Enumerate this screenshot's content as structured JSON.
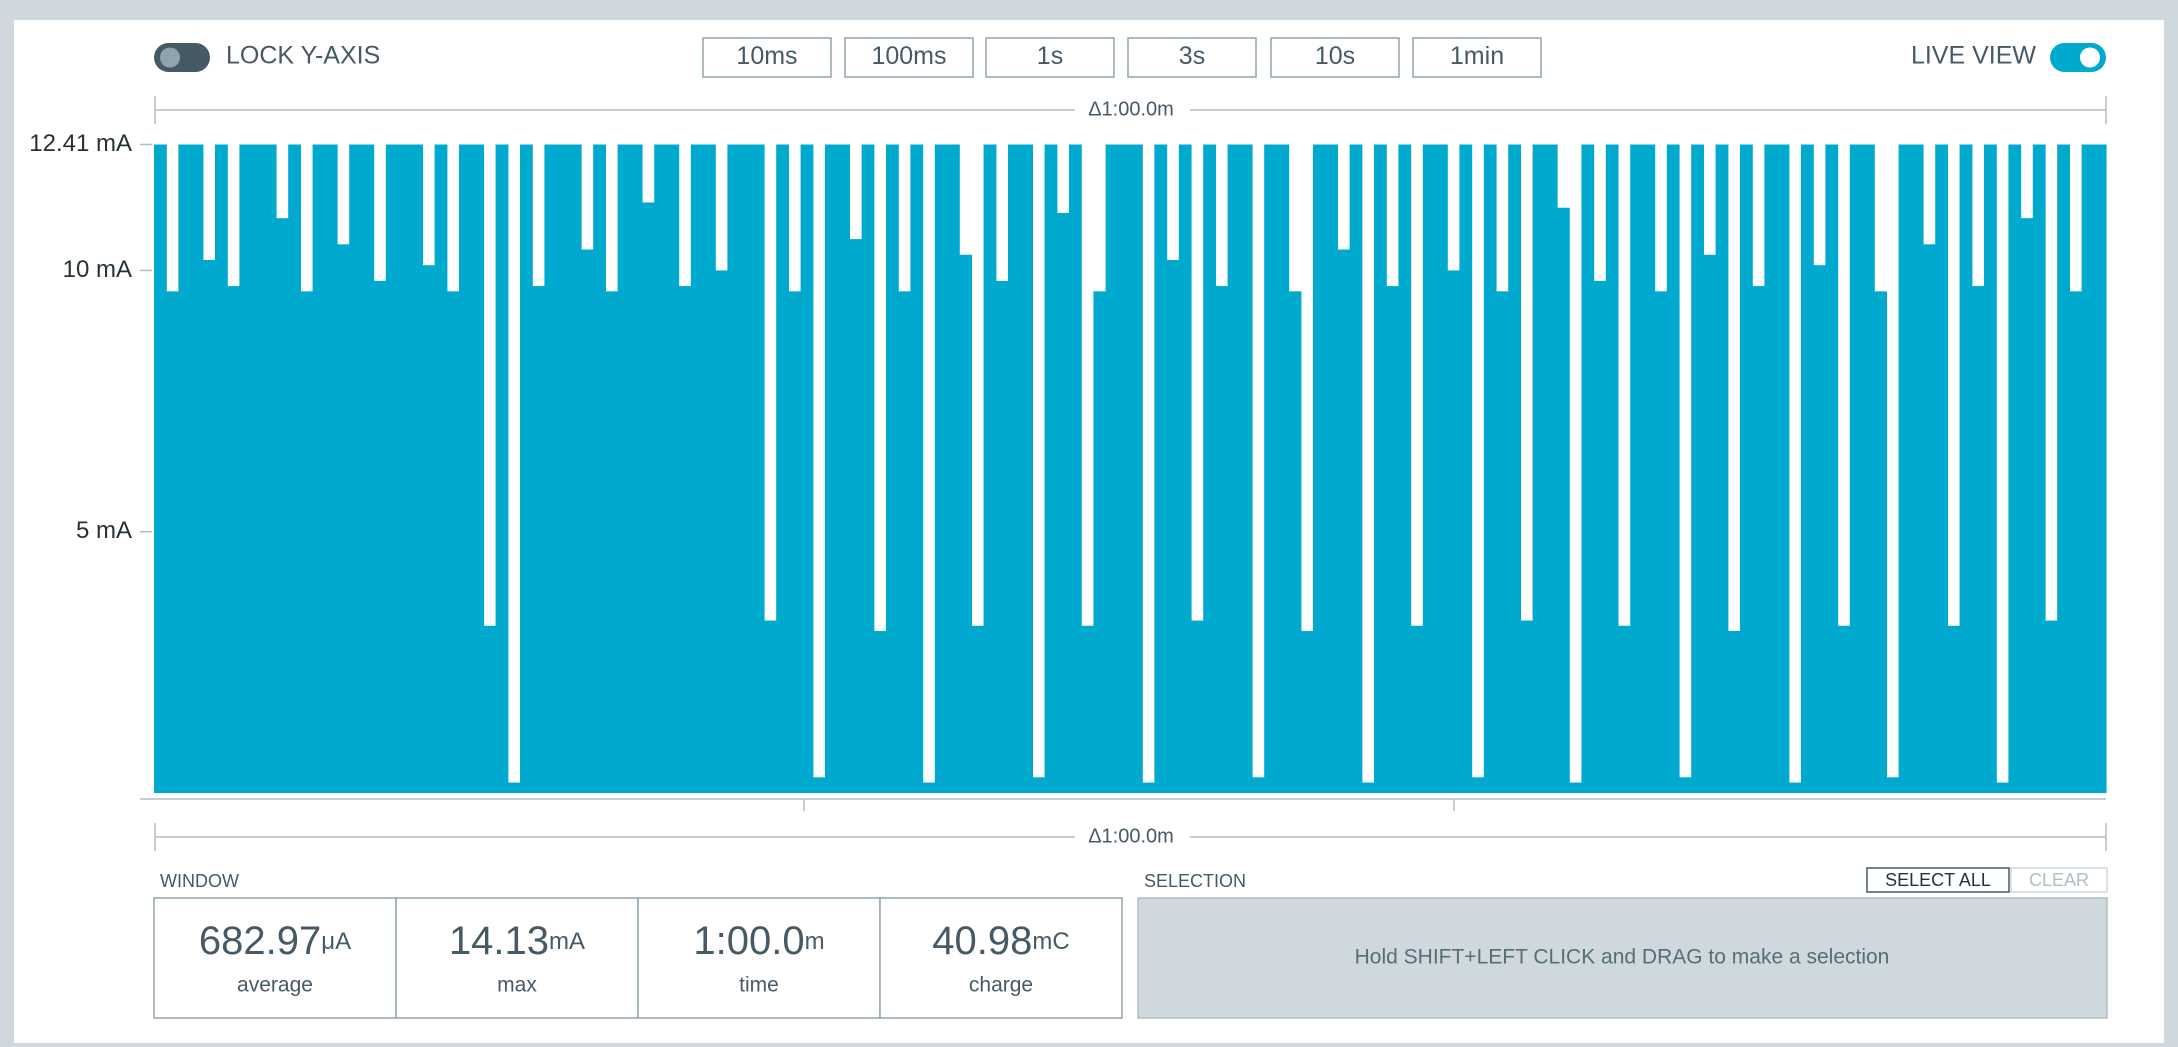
{
  "ui": {
    "lock_label": "LOCK Y-AXIS",
    "live_label": "LIVE VIEW",
    "time_buttons": [
      "10ms",
      "100ms",
      "1s",
      "3s",
      "10s",
      "1min"
    ],
    "top_delta": "Δ1:00.0m",
    "bottom_delta": "Δ1:00.0m",
    "window_label": "WINDOW",
    "stats": [
      {
        "value": "682.97",
        "unit": "μA",
        "label": "average"
      },
      {
        "value": "14.13",
        "unit": "mA",
        "label": "max"
      },
      {
        "value": "1:00.0",
        "unit": "m",
        "label": "time"
      },
      {
        "value": "40.98",
        "unit": "mC",
        "label": "charge"
      }
    ],
    "selection_label": "SELECTION",
    "select_all": "SELECT ALL",
    "clear": "CLEAR",
    "selection_hint": "Hold SHIFT+LEFT CLICK and DRAG to make a selection"
  },
  "chart_data": {
    "type": "bar",
    "color": "#00a9ce",
    "ylim": [
      0,
      12.41
    ],
    "yticks": [
      {
        "value": 5,
        "label": "5 mA"
      },
      {
        "value": 10,
        "label": "10 mA"
      },
      {
        "value": 12.41,
        "label": "12.41 mA"
      }
    ],
    "values": [
      12.41,
      9.6,
      12.41,
      12.41,
      10.2,
      12.41,
      9.7,
      12.41,
      12.41,
      12.41,
      11.0,
      12.41,
      9.6,
      12.41,
      12.41,
      10.5,
      12.41,
      12.41,
      9.8,
      12.41,
      12.41,
      12.41,
      10.1,
      12.41,
      9.6,
      12.41,
      12.41,
      3.2,
      12.41,
      0.2,
      12.41,
      9.7,
      12.41,
      12.41,
      12.41,
      10.4,
      12.41,
      9.6,
      12.41,
      12.41,
      11.3,
      12.41,
      12.41,
      9.7,
      12.41,
      12.41,
      10.0,
      12.41,
      12.41,
      12.41,
      3.3,
      12.41,
      9.6,
      12.41,
      0.3,
      12.41,
      12.41,
      10.6,
      12.41,
      3.1,
      12.41,
      9.6,
      12.41,
      0.2,
      12.41,
      12.41,
      10.3,
      3.2,
      12.41,
      9.8,
      12.41,
      12.41,
      0.3,
      12.41,
      11.1,
      12.41,
      3.2,
      9.6,
      12.41,
      12.41,
      12.41,
      0.2,
      12.41,
      10.2,
      12.41,
      3.3,
      12.41,
      9.7,
      12.41,
      12.41,
      0.3,
      12.41,
      12.41,
      9.6,
      3.1,
      12.41,
      12.41,
      10.4,
      12.41,
      0.2,
      12.41,
      9.7,
      12.41,
      3.2,
      12.41,
      12.41,
      10.0,
      12.41,
      0.3,
      12.41,
      9.6,
      12.41,
      3.3,
      12.41,
      12.41,
      11.2,
      0.2,
      12.41,
      9.8,
      12.41,
      3.2,
      12.41,
      12.41,
      9.6,
      12.41,
      0.3,
      12.41,
      10.3,
      12.41,
      3.1,
      12.41,
      9.7,
      12.41,
      12.41,
      0.2,
      12.41,
      10.1,
      12.41,
      3.2,
      12.41,
      12.41,
      9.6,
      0.3,
      12.41,
      12.41,
      10.5,
      12.41,
      3.2,
      12.41,
      9.7,
      12.41,
      0.2,
      12.41,
      11.0,
      12.41,
      3.3,
      12.41,
      9.6,
      12.41,
      12.41
    ]
  }
}
